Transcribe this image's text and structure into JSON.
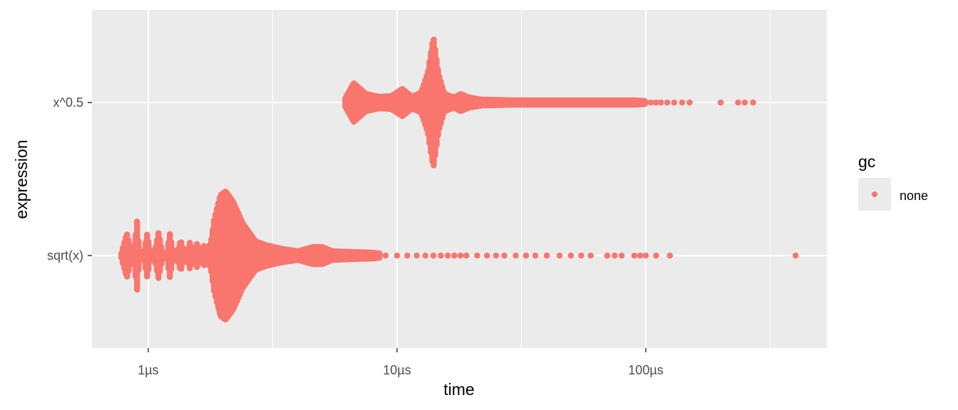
{
  "chart_data": {
    "type": "beeswarm",
    "xlabel": "time",
    "ylabel": "expression",
    "x_scale": "log10",
    "x_unit": "µs",
    "xlim": [
      0.7,
      500
    ],
    "x_ticks": [
      {
        "value": 1,
        "label": "1µs"
      },
      {
        "value": 10,
        "label": "10µs"
      },
      {
        "value": 100,
        "label": "100µs"
      }
    ],
    "y_categories": [
      "sqrt(x)",
      "x^0.5"
    ],
    "grid": true,
    "background": "#EBEBEB",
    "legend": {
      "title": "gc",
      "position": "right",
      "entries": [
        {
          "label": "none",
          "color": "#F8766D"
        }
      ]
    },
    "series": [
      {
        "category": "x^0.5",
        "color": "#F8766D",
        "density": [
          [
            6.2,
            6
          ],
          [
            6.7,
            27
          ],
          [
            7.5,
            12
          ],
          [
            8.5,
            8
          ],
          [
            9.5,
            9
          ],
          [
            10.5,
            19
          ],
          [
            11.5,
            8
          ],
          [
            12.5,
            14
          ],
          [
            13.3,
            42
          ],
          [
            14.0,
            92
          ],
          [
            14.7,
            40
          ],
          [
            15.5,
            12
          ],
          [
            17,
            7
          ],
          [
            18,
            12
          ],
          [
            19.5,
            7
          ],
          [
            22,
            4
          ],
          [
            30,
            3
          ],
          [
            50,
            3
          ],
          [
            90,
            3
          ],
          [
            100,
            2
          ]
        ],
        "outliers": [
          100.2,
          105,
          110,
          115,
          122,
          130,
          140,
          150,
          200,
          235,
          250,
          270
        ]
      },
      {
        "category": "sqrt(x)",
        "color": "#F8766D",
        "density": [
          [
            0.78,
            3
          ],
          [
            0.82,
            31
          ],
          [
            0.86,
            3
          ],
          [
            0.88,
            6
          ],
          [
            0.9,
            52
          ],
          [
            0.92,
            6
          ],
          [
            0.96,
            4
          ],
          [
            0.99,
            30
          ],
          [
            1.02,
            4
          ],
          [
            1.06,
            4
          ],
          [
            1.1,
            32
          ],
          [
            1.14,
            4
          ],
          [
            1.19,
            4
          ],
          [
            1.22,
            31
          ],
          [
            1.26,
            4
          ],
          [
            1.31,
            4
          ],
          [
            1.35,
            22
          ],
          [
            1.39,
            4
          ],
          [
            1.43,
            3
          ],
          [
            1.47,
            18
          ],
          [
            1.52,
            4
          ],
          [
            1.57,
            16
          ],
          [
            1.62,
            4
          ],
          [
            1.67,
            14
          ],
          [
            1.72,
            9
          ],
          [
            1.78,
            16
          ],
          [
            1.84,
            50
          ],
          [
            1.95,
            85
          ],
          [
            2.05,
            90
          ],
          [
            2.2,
            75
          ],
          [
            2.4,
            45
          ],
          [
            2.7,
            20
          ],
          [
            3.0,
            14
          ],
          [
            3.5,
            9
          ],
          [
            4.0,
            6
          ],
          [
            4.6,
            12
          ],
          [
            5.0,
            12
          ],
          [
            5.5,
            6
          ],
          [
            6.5,
            5
          ],
          [
            8,
            4
          ],
          [
            8.5,
            3
          ]
        ],
        "outliers": [
          9,
          10,
          11,
          12,
          13,
          14,
          15,
          16,
          17,
          18,
          19,
          21,
          23,
          25,
          27,
          30,
          33,
          36,
          40,
          45,
          50,
          55,
          60,
          70,
          75,
          80,
          90,
          95,
          100,
          110,
          125,
          400
        ]
      }
    ]
  }
}
